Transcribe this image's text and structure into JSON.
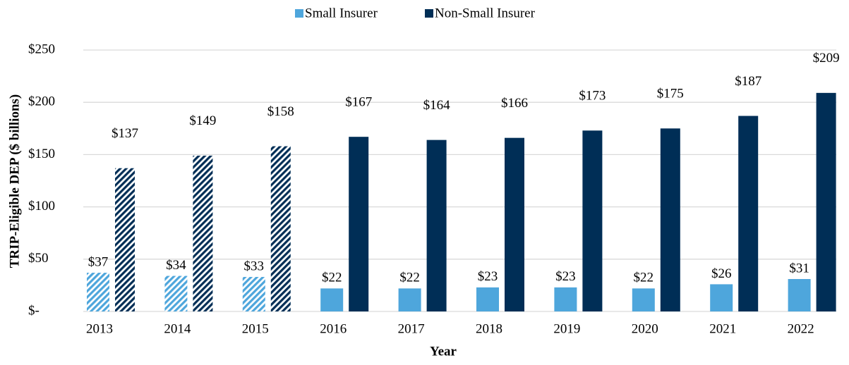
{
  "chart_data": {
    "type": "bar",
    "xlabel": "Year",
    "ylabel": "TRIP-Eligible DEP ($ billions)",
    "categories": [
      "2013",
      "2014",
      "2015",
      "2016",
      "2017",
      "2018",
      "2019",
      "2020",
      "2021",
      "2022"
    ],
    "series": [
      {
        "name": "Small Insurer",
        "color": "#4ea6dc",
        "values": [
          37,
          34,
          33,
          22,
          22,
          23,
          23,
          22,
          26,
          31
        ],
        "value_labels": [
          "$37",
          "$34",
          "$33",
          "$22",
          "$22",
          "$23",
          "$23",
          "$22",
          "$26",
          "$31"
        ],
        "hatch": [
          true,
          true,
          true,
          false,
          false,
          false,
          false,
          false,
          false,
          false
        ]
      },
      {
        "name": "Non-Small Insurer",
        "color": "#002e56",
        "values": [
          137,
          149,
          158,
          167,
          164,
          166,
          173,
          175,
          187,
          209
        ],
        "value_labels": [
          "$137",
          "$149",
          "$158",
          "$167",
          "$164",
          "$166",
          "$173",
          "$175",
          "$187",
          "$209"
        ],
        "hatch": [
          true,
          true,
          true,
          false,
          false,
          false,
          false,
          false,
          false,
          false
        ]
      }
    ],
    "ylim": [
      0,
      250
    ],
    "yticks": [
      {
        "value": 0,
        "label": "$-"
      },
      {
        "value": 50,
        "label": "$50"
      },
      {
        "value": 100,
        "label": "$100"
      },
      {
        "value": 150,
        "label": "$150"
      },
      {
        "value": 200,
        "label": "$200"
      },
      {
        "value": 250,
        "label": "$250"
      }
    ],
    "grid": true,
    "legend": "top"
  }
}
